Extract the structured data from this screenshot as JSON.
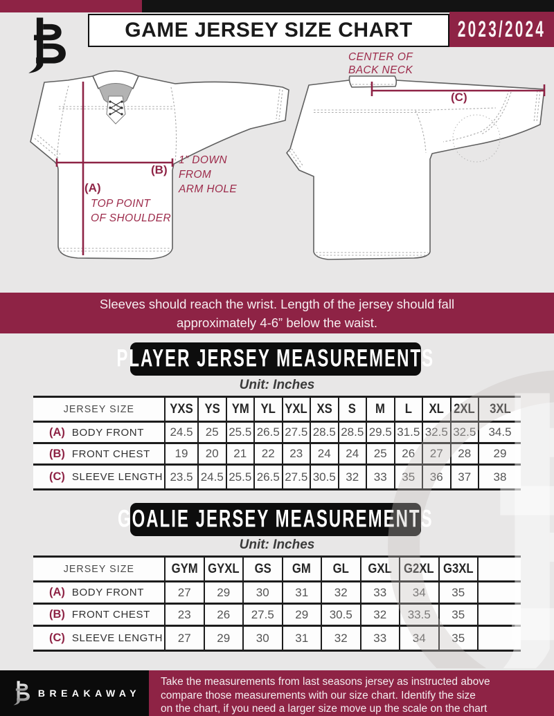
{
  "colors": {
    "maroon": "#8e2345",
    "black": "#121212",
    "page_bg": "#e8e7e7"
  },
  "header": {
    "logo_icon": "breakaway-b-monogram",
    "title": "GAME JERSEY SIZE CHART",
    "season": "2023/2024"
  },
  "diagram": {
    "front": {
      "label_a": "(A)",
      "label_b": "(B)",
      "note_shoulder": [
        "TOP POINT",
        "OF SHOULDER"
      ],
      "note_armhole": [
        "1” DOWN",
        "FROM",
        "ARM HOLE"
      ]
    },
    "back": {
      "label_c": "(C)",
      "note_neck": [
        "CENTER OF",
        "BACK NECK"
      ]
    }
  },
  "banner": {
    "line1": "Sleeves should reach the wrist. Length of the jersey should fall",
    "line2": "approximately 4-6” below the waist."
  },
  "player_table": {
    "heading": "PLAYER JERSEY MEASUREMENTS",
    "unit": "Unit: Inches",
    "corner": "JERSEY SIZE",
    "trailing_blank": false,
    "sizes": [
      "YXS",
      "YS",
      "YM",
      "YL",
      "YXL",
      "XS",
      "S",
      "M",
      "L",
      "XL",
      "2XL",
      "3XL"
    ],
    "rows": [
      {
        "key": "(A)",
        "label": "BODY FRONT",
        "values": [
          "24.5",
          "25",
          "25.5",
          "26.5",
          "27.5",
          "28.5",
          "28.5",
          "29.5",
          "31.5",
          "32.5",
          "32.5",
          "34.5"
        ]
      },
      {
        "key": "(B)",
        "label": "FRONT CHEST",
        "values": [
          "19",
          "20",
          "21",
          "22",
          "23",
          "24",
          "24",
          "25",
          "26",
          "27",
          "28",
          "29"
        ]
      },
      {
        "key": "(C)",
        "label": "SLEEVE LENGTH",
        "values": [
          "23.5",
          "24.5",
          "25.5",
          "26.5",
          "27.5",
          "30.5",
          "32",
          "33",
          "35",
          "36",
          "37",
          "38"
        ]
      }
    ]
  },
  "goalie_table": {
    "heading": "GOALIE JERSEY MEASUREMENTS",
    "unit": "Unit: Inches",
    "corner": "JERSEY SIZE",
    "trailing_blank": true,
    "sizes": [
      "GYM",
      "GYXL",
      "GS",
      "GM",
      "GL",
      "GXL",
      "G2XL",
      "G3XL"
    ],
    "rows": [
      {
        "key": "(A)",
        "label": "BODY FRONT",
        "values": [
          "27",
          "29",
          "30",
          "31",
          "32",
          "33",
          "34",
          "35"
        ]
      },
      {
        "key": "(B)",
        "label": "FRONT CHEST",
        "values": [
          "23",
          "26",
          "27.5",
          "29",
          "30.5",
          "32",
          "33.5",
          "35"
        ]
      },
      {
        "key": "(C)",
        "label": "SLEEVE LENGTH",
        "values": [
          "27",
          "29",
          "30",
          "31",
          "32",
          "33",
          "34",
          "35"
        ]
      }
    ]
  },
  "footer": {
    "logo_icon": "breakaway-b-monogram",
    "brand": "BREAKAWAY",
    "lines": [
      "Take the measurements from last seasons jersey as instructed above",
      "compare those measurements  with our size chart. Identify the size",
      "on the chart, if you need a larger size move up the scale on the chart"
    ]
  }
}
